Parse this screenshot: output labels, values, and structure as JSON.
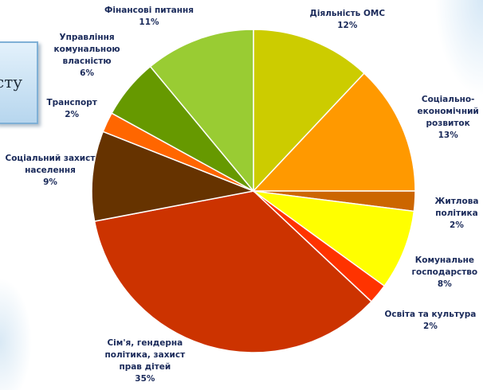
{
  "title_fragment": "сту",
  "chart_data": {
    "type": "pie",
    "title": "",
    "slices": [
      {
        "label": "Діяльність ОМС",
        "lines": [
          "Діяльність ОМС"
        ],
        "value": 12,
        "pct_label": "12%",
        "color": "#cccc00"
      },
      {
        "label": "Соціально-економічний розвиток",
        "lines": [
          "Соціально-",
          "економічний",
          "розвиток"
        ],
        "value": 13,
        "pct_label": "13%",
        "color": "#ff9900"
      },
      {
        "label": "Житлова політика",
        "lines": [
          "Житлова",
          "політика"
        ],
        "value": 2,
        "pct_label": "2%",
        "color": "#cc6600"
      },
      {
        "label": "Комунальне господарство",
        "lines": [
          "Комунальне",
          "господарство"
        ],
        "value": 8,
        "pct_label": "8%",
        "color": "#ffff00"
      },
      {
        "label": "Освіта та культура",
        "lines": [
          "Освіта та культура"
        ],
        "value": 2,
        "pct_label": "2%",
        "color": "#ff3300"
      },
      {
        "label": "Сім'я, гендерна політика, захист прав дітей",
        "lines": [
          "Сім'я, гендерна",
          "політика, захист",
          "прав дітей"
        ],
        "value": 35,
        "pct_label": "35%",
        "color": "#cc3300"
      },
      {
        "label": "Соціальний захист населення",
        "lines": [
          "Соціальний захист",
          "населення"
        ],
        "value": 9,
        "pct_label": "9%",
        "color": "#663300"
      },
      {
        "label": "Транспорт",
        "lines": [
          "Транспорт"
        ],
        "value": 2,
        "pct_label": "2%",
        "color": "#ff6600"
      },
      {
        "label": "Управління комунальною власністю",
        "lines": [
          "Управління",
          "комунальною",
          "власністю"
        ],
        "value": 6,
        "pct_label": "6%",
        "color": "#669900"
      },
      {
        "label": "Фінансові питання",
        "lines": [
          "Фінансові питання"
        ],
        "value": 11,
        "pct_label": "11%",
        "color": "#99cc33"
      }
    ]
  }
}
